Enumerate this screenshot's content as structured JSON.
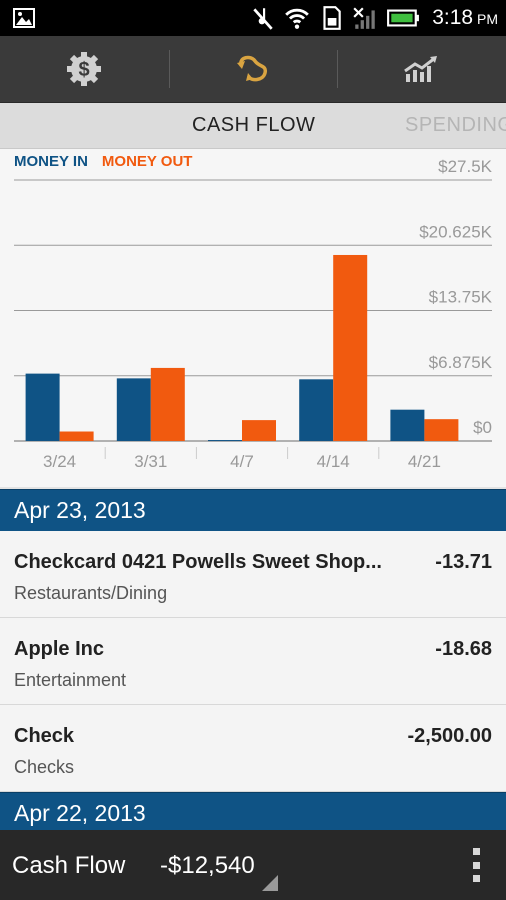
{
  "status_bar": {
    "time": "3:18",
    "ampm": "PM",
    "icons": [
      "gallery-icon",
      "mute-icon",
      "wifi-icon",
      "sd-card-icon",
      "no-signal-icon",
      "battery-icon"
    ]
  },
  "action_bar": {
    "buttons": [
      {
        "icon": "dollar-gear-icon",
        "label": "Accounts"
      },
      {
        "icon": "cash-flow-icon",
        "label": "Cash Flow",
        "active": true
      },
      {
        "icon": "trends-icon",
        "label": "Trends"
      }
    ],
    "colors": {
      "active": "#d9a441",
      "inactive": "#d0d0d0"
    }
  },
  "tabs": {
    "active": "CASH FLOW",
    "next": "SPENDING"
  },
  "legend": {
    "money_in": "MONEY IN",
    "money_out": "MONEY OUT"
  },
  "chart_data": {
    "type": "bar",
    "categories": [
      "3/24",
      "3/31",
      "4/7",
      "4/14",
      "4/21"
    ],
    "series": [
      {
        "name": "MONEY IN",
        "color": "#0f5385",
        "values": [
          7100,
          6600,
          100,
          6500,
          3300
        ]
      },
      {
        "name": "MONEY OUT",
        "color": "#f15a0f",
        "values": [
          1000,
          7700,
          2200,
          19600,
          2300
        ]
      }
    ],
    "y_ticks": [
      "$0",
      "$6.875K",
      "$13.75K",
      "$20.625K",
      "$27.5K"
    ],
    "ylim": [
      0,
      27500
    ],
    "grid": true,
    "legend_position": "top-left"
  },
  "transactions": [
    {
      "date": "Apr 23, 2013",
      "items": [
        {
          "name": "Checkcard 0421 Powells Sweet Shop...",
          "category": "Restaurants/Dining",
          "amount": "-13.71"
        },
        {
          "name": "Apple Inc",
          "category": "Entertainment",
          "amount": "-18.68"
        },
        {
          "name": "Check",
          "category": "Checks",
          "amount": "-2,500.00"
        }
      ]
    },
    {
      "date": "Apr 22, 2013",
      "items": []
    }
  ],
  "bottom_bar": {
    "title": "Cash Flow",
    "value": "-$12,540"
  }
}
